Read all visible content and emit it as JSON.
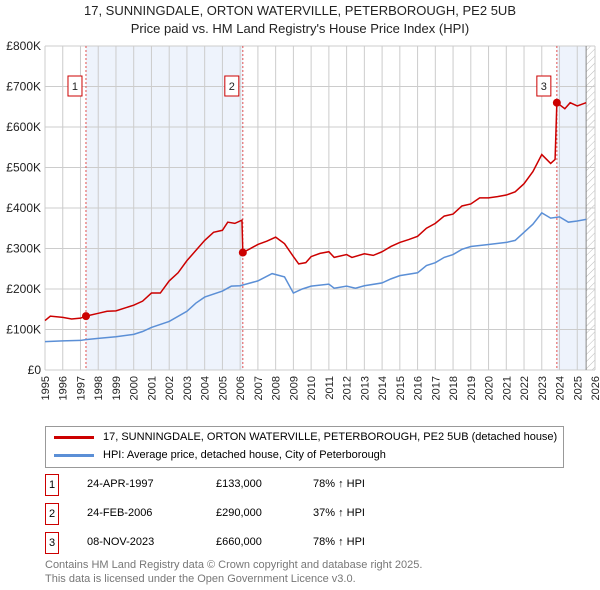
{
  "title": "17, SUNNINGDALE, ORTON WATERVILLE, PETERBOROUGH, PE2 5UB",
  "subtitle": "Price paid vs. HM Land Registry's House Price Index (HPI)",
  "colors": {
    "property": "#cc0000",
    "hpi": "#5b8fd6",
    "shade": "#eef3fc",
    "grid": "#cccccc"
  },
  "chart_data": {
    "type": "line",
    "xlim": [
      1995,
      2026
    ],
    "ylim": [
      0,
      800000
    ],
    "y_ticks": [
      {
        "v": 0,
        "label": "£0"
      },
      {
        "v": 100000,
        "label": "£100K"
      },
      {
        "v": 200000,
        "label": "£200K"
      },
      {
        "v": 300000,
        "label": "£300K"
      },
      {
        "v": 400000,
        "label": "£400K"
      },
      {
        "v": 500000,
        "label": "£500K"
      },
      {
        "v": 600000,
        "label": "£600K"
      },
      {
        "v": 700000,
        "label": "£700K"
      },
      {
        "v": 800000,
        "label": "£800K"
      }
    ],
    "x_ticks": [
      "1995",
      "1996",
      "1997",
      "1998",
      "1999",
      "2000",
      "2001",
      "2002",
      "2003",
      "2004",
      "2005",
      "2006",
      "2007",
      "2008",
      "2009",
      "2010",
      "2011",
      "2012",
      "2013",
      "2014",
      "2015",
      "2016",
      "2017",
      "2018",
      "2019",
      "2020",
      "2021",
      "2022",
      "2023",
      "2024",
      "2025",
      "2026"
    ],
    "shaded_ranges": [
      [
        1997.31,
        2006.15
      ],
      [
        2023.85,
        2025.5
      ]
    ],
    "hatched_from": 2025.5,
    "series": [
      {
        "name": "17, SUNNINGDALE, ORTON WATERVILLE, PETERBOROUGH, PE2 5UB (detached house)",
        "color": "#cc0000",
        "x": [
          1995,
          1995.3,
          1996,
          1996.5,
          1997,
          1997.31,
          1998,
          1998.5,
          1999,
          2000,
          2000.5,
          2001,
          2001.5,
          2002,
          2002.5,
          2003,
          2003.5,
          2004,
          2004.5,
          2005,
          2005.3,
          2005.7,
          2006.1,
          2006.15,
          2006.5,
          2007,
          2007.5,
          2008,
          2008.5,
          2009,
          2009.3,
          2009.7,
          2010,
          2010.5,
          2011,
          2011.3,
          2012,
          2012.3,
          2013,
          2013.5,
          2014,
          2014.5,
          2015,
          2015.5,
          2016,
          2016.5,
          2017,
          2017.5,
          2018,
          2018.5,
          2019,
          2019.5,
          2020,
          2020.5,
          2021,
          2021.5,
          2022,
          2022.5,
          2023,
          2023.5,
          2023.75,
          2023.85,
          2024.3,
          2024.6,
          2025,
          2025.5
        ],
        "y": [
          122000,
          133000,
          130000,
          126000,
          128000,
          133000,
          140000,
          145000,
          146000,
          160000,
          170000,
          190000,
          190000,
          220000,
          240000,
          270000,
          295000,
          320000,
          340000,
          345000,
          365000,
          362000,
          370000,
          290000,
          298000,
          310000,
          318000,
          328000,
          312000,
          280000,
          262000,
          265000,
          280000,
          288000,
          292000,
          278000,
          285000,
          278000,
          287000,
          283000,
          292000,
          305000,
          315000,
          322000,
          330000,
          350000,
          362000,
          380000,
          385000,
          405000,
          410000,
          425000,
          425000,
          428000,
          432000,
          440000,
          460000,
          490000,
          532000,
          510000,
          520000,
          660000,
          645000,
          660000,
          652000,
          660000
        ]
      },
      {
        "name": "HPI: Average price, detached house, City of Peterborough",
        "color": "#5b8fd6",
        "x": [
          1995,
          1996,
          1997,
          1997.3,
          1998,
          1999,
          2000,
          2000.5,
          2001,
          2002,
          2003,
          2003.5,
          2004,
          2005,
          2005.5,
          2006,
          2007,
          2007.8,
          2008.5,
          2009,
          2009.5,
          2010,
          2011,
          2011.3,
          2012,
          2012.5,
          2013,
          2014,
          2014.5,
          2015,
          2016,
          2016.5,
          2017,
          2017.5,
          2018,
          2018.5,
          2019,
          2020,
          2021,
          2021.5,
          2022,
          2022.5,
          2023,
          2023.5,
          2024,
          2024.5,
          2025,
          2025.5
        ],
        "y": [
          70000,
          72000,
          73000,
          75000,
          78000,
          82000,
          88000,
          95000,
          105000,
          120000,
          145000,
          165000,
          180000,
          195000,
          207000,
          208000,
          220000,
          238000,
          230000,
          190000,
          200000,
          207000,
          212000,
          202000,
          207000,
          202000,
          208000,
          215000,
          225000,
          233000,
          240000,
          258000,
          265000,
          278000,
          285000,
          298000,
          305000,
          310000,
          315000,
          320000,
          340000,
          360000,
          388000,
          375000,
          378000,
          365000,
          368000,
          372000
        ]
      }
    ],
    "sales": [
      {
        "id": "1",
        "date": "24-APR-1997",
        "x": 1997.31,
        "price": 133000,
        "price_label": "£133,000",
        "hpi_label": "78% ↑ HPI"
      },
      {
        "id": "2",
        "date": "24-FEB-2006",
        "x": 2006.15,
        "price": 290000,
        "price_label": "£290,000",
        "hpi_label": "37% ↑ HPI"
      },
      {
        "id": "3",
        "date": "08-NOV-2023",
        "x": 2023.85,
        "price": 660000,
        "price_label": "£660,000",
        "hpi_label": "78% ↑ HPI"
      }
    ]
  },
  "legend": {
    "property": "17, SUNNINGDALE, ORTON WATERVILLE, PETERBOROUGH, PE2 5UB (detached house)",
    "hpi": "HPI: Average price, detached house, City of Peterborough"
  },
  "footer": {
    "line1": "Contains HM Land Registry data © Crown copyright and database right 2025.",
    "line2": "This data is licensed under the Open Government Licence v3.0."
  }
}
